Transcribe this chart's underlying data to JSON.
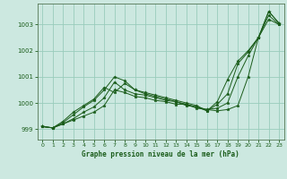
{
  "title": "Graphe pression niveau de la mer (hPa)",
  "bg_color": "#cce8e0",
  "grid_color": "#99ccbb",
  "line_color": "#1a5c1a",
  "marker_color": "#1a5c1a",
  "xlim": [
    -0.5,
    23.5
  ],
  "ylim": [
    998.6,
    1003.8
  ],
  "yticks": [
    999,
    1000,
    1001,
    1002,
    1003
  ],
  "xticks": [
    0,
    1,
    2,
    3,
    4,
    5,
    6,
    7,
    8,
    9,
    10,
    11,
    12,
    13,
    14,
    15,
    16,
    17,
    18,
    19,
    20,
    21,
    22,
    23
  ],
  "series": [
    [
      999.1,
      999.05,
      999.2,
      999.35,
      999.5,
      999.65,
      999.9,
      1000.5,
      1000.4,
      1000.25,
      1000.2,
      1000.1,
      1000.05,
      999.95,
      999.95,
      999.8,
      999.75,
      999.7,
      999.75,
      999.9,
      1001.0,
      1002.5,
      1003.2,
      1003.0
    ],
    [
      999.1,
      999.05,
      999.2,
      999.4,
      999.65,
      999.85,
      1000.2,
      1000.8,
      1000.5,
      1000.35,
      1000.3,
      1000.2,
      1000.1,
      1000.05,
      999.9,
      999.85,
      999.75,
      999.8,
      1000.0,
      1001.0,
      1001.8,
      1002.5,
      1003.35,
      1003.0
    ],
    [
      999.1,
      999.05,
      999.25,
      999.55,
      999.85,
      1000.1,
      1000.5,
      1001.0,
      1000.85,
      1000.5,
      1000.4,
      1000.3,
      1000.2,
      1000.1,
      1000.0,
      999.9,
      999.7,
      999.95,
      1000.35,
      1001.5,
      1001.95,
      1002.5,
      1003.5,
      1003.05
    ],
    [
      999.1,
      999.05,
      999.3,
      999.65,
      999.9,
      1000.15,
      1000.6,
      1000.4,
      1000.75,
      1000.5,
      1000.35,
      1000.25,
      1000.15,
      1000.05,
      999.95,
      999.85,
      999.7,
      1000.05,
      1000.9,
      1001.6,
      1002.0,
      1002.5,
      1003.5,
      1003.05
    ]
  ]
}
